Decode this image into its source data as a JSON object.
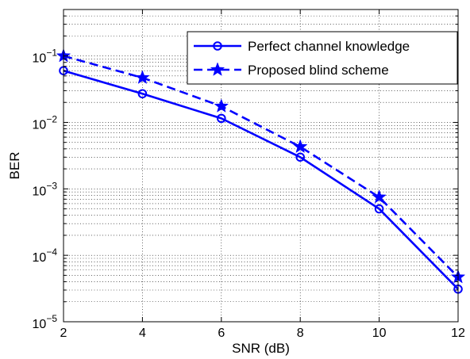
{
  "chart_data": {
    "type": "line",
    "title": "",
    "xlabel": "SNR (dB)",
    "ylabel": "BER",
    "xlim": [
      2,
      12
    ],
    "ylim": [
      1e-05,
      0.5
    ],
    "yscale": "log",
    "grid": true,
    "legend_position": "top-right",
    "x_ticks": [
      2,
      4,
      6,
      8,
      10,
      12
    ],
    "y_ticks": [
      {
        "value": 0.1,
        "base": "10",
        "exp": "−1"
      },
      {
        "value": 0.01,
        "base": "10",
        "exp": "−2"
      },
      {
        "value": 0.001,
        "base": "10",
        "exp": "−3"
      },
      {
        "value": 0.0001,
        "base": "10",
        "exp": "−4"
      },
      {
        "value": 1e-05,
        "base": "10",
        "exp": "−5"
      }
    ],
    "series": [
      {
        "name": "Perfect channel knowledge",
        "color": "#0000ff",
        "line_style": "solid",
        "marker": "circle",
        "x": [
          2,
          4,
          6,
          8,
          10,
          12
        ],
        "y": [
          0.06,
          0.027,
          0.0115,
          0.003,
          0.0005,
          3.1e-05
        ]
      },
      {
        "name": "Proposed blind scheme",
        "color": "#0000ff",
        "line_style": "dashed",
        "marker": "star",
        "x": [
          2,
          4,
          6,
          8,
          10,
          12
        ],
        "y": [
          0.1,
          0.047,
          0.0175,
          0.0043,
          0.00075,
          4.7e-05
        ]
      }
    ]
  }
}
